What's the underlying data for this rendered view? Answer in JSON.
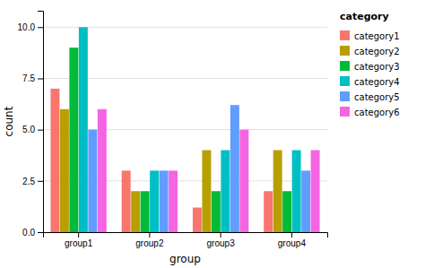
{
  "chart_data": {
    "type": "bar",
    "xlabel": "group",
    "ylabel": "count",
    "legend_title": "category",
    "categories": [
      "group1",
      "group2",
      "group3",
      "group4"
    ],
    "series": [
      {
        "name": "category1",
        "color": "#F8766D",
        "values": [
          7.0,
          3.0,
          1.2,
          2.0
        ]
      },
      {
        "name": "category2",
        "color": "#B79F00",
        "values": [
          6.0,
          2.0,
          4.0,
          4.0
        ]
      },
      {
        "name": "category3",
        "color": "#00BA38",
        "values": [
          9.0,
          2.0,
          2.0,
          2.0
        ]
      },
      {
        "name": "category4",
        "color": "#00BFC4",
        "values": [
          10.0,
          3.0,
          4.0,
          4.0
        ]
      },
      {
        "name": "category5",
        "color": "#619CFF",
        "values": [
          5.0,
          3.0,
          6.2,
          3.0
        ]
      },
      {
        "name": "category6",
        "color": "#F564E3",
        "values": [
          6.0,
          3.0,
          5.0,
          4.0
        ]
      }
    ],
    "ylim": [
      0,
      10.8
    ],
    "yticks": [
      {
        "value": 0.0,
        "label": "0.0"
      },
      2.5,
      {
        "value": 5.0,
        "label": "5.0"
      },
      {
        "value": 7.5,
        "label": "7.5"
      },
      {
        "value": 10.0,
        "label": "10.0"
      }
    ],
    "grid": true,
    "legend": "right"
  }
}
